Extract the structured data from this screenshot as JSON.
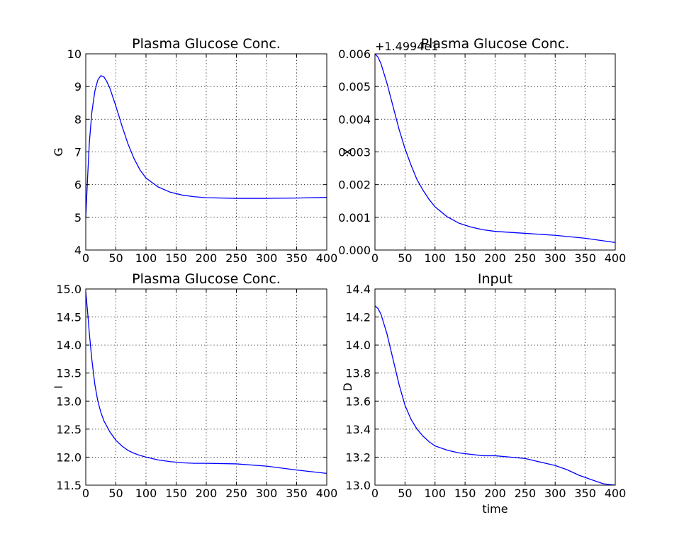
{
  "chart_data": [
    {
      "type": "line",
      "title": "Plasma Glucose Conc.",
      "xlabel": "",
      "ylabel": "G",
      "xlim": [
        0,
        400
      ],
      "ylim": [
        4,
        10
      ],
      "xticks": [
        0,
        50,
        100,
        150,
        200,
        250,
        300,
        350,
        400
      ],
      "yticks": [
        4,
        5,
        6,
        7,
        8,
        9,
        10
      ],
      "ytick_labels": [
        "4",
        "5",
        "6",
        "7",
        "8",
        "9",
        "10"
      ],
      "grid": true,
      "offset_text": "",
      "series": [
        {
          "color": "#0000ff",
          "x": [
            0,
            3,
            6,
            10,
            15,
            20,
            25,
            30,
            35,
            40,
            50,
            60,
            70,
            80,
            90,
            100,
            120,
            140,
            160,
            180,
            200,
            250,
            300,
            350,
            400
          ],
          "y": [
            5.0,
            6.2,
            7.3,
            8.2,
            8.85,
            9.2,
            9.33,
            9.3,
            9.15,
            8.95,
            8.4,
            7.8,
            7.25,
            6.8,
            6.45,
            6.2,
            5.93,
            5.77,
            5.68,
            5.63,
            5.6,
            5.58,
            5.58,
            5.59,
            5.61
          ]
        }
      ]
    },
    {
      "type": "line",
      "title": "Plasma Glucose Conc.",
      "xlabel": "",
      "ylabel": "X",
      "xlim": [
        0,
        400
      ],
      "ylim": [
        0,
        0.006
      ],
      "xticks": [
        0,
        50,
        100,
        150,
        200,
        250,
        300,
        350,
        400
      ],
      "yticks": [
        0,
        0.001,
        0.002,
        0.003,
        0.004,
        0.005,
        0.006
      ],
      "ytick_labels": [
        "0.000",
        "0.001",
        "0.002",
        "0.003",
        "0.004",
        "0.005",
        "0.006"
      ],
      "grid": true,
      "offset_text": "+1.4994e1",
      "series": [
        {
          "color": "#0000ff",
          "x": [
            0,
            5,
            10,
            20,
            30,
            40,
            50,
            60,
            70,
            80,
            90,
            100,
            120,
            140,
            160,
            180,
            200,
            250,
            300,
            350,
            400
          ],
          "y": [
            0.006,
            0.0059,
            0.0057,
            0.0051,
            0.0044,
            0.0037,
            0.0031,
            0.0026,
            0.00215,
            0.00183,
            0.00155,
            0.00132,
            0.00102,
            0.00082,
            0.0007,
            0.00062,
            0.00057,
            0.00051,
            0.00045,
            0.00036,
            0.00023
          ]
        }
      ]
    },
    {
      "type": "line",
      "title": "Plasma Glucose Conc.",
      "xlabel": "",
      "ylabel": "I",
      "xlim": [
        0,
        400
      ],
      "ylim": [
        11.5,
        15.0
      ],
      "xticks": [
        0,
        50,
        100,
        150,
        200,
        250,
        300,
        350,
        400
      ],
      "yticks": [
        11.5,
        12.0,
        12.5,
        13.0,
        13.5,
        14.0,
        14.5,
        15.0
      ],
      "ytick_labels": [
        "11.5",
        "12.0",
        "12.5",
        "13.0",
        "13.5",
        "14.0",
        "14.5",
        "15.0"
      ],
      "grid": true,
      "offset_text": "",
      "series": [
        {
          "color": "#0000ff",
          "x": [
            0,
            3,
            6,
            10,
            15,
            20,
            25,
            30,
            40,
            50,
            60,
            70,
            80,
            90,
            100,
            120,
            140,
            160,
            180,
            200,
            250,
            300,
            350,
            400
          ],
          "y": [
            14.95,
            14.6,
            14.2,
            13.75,
            13.3,
            13.0,
            12.8,
            12.65,
            12.45,
            12.3,
            12.2,
            12.12,
            12.07,
            12.03,
            12.0,
            11.95,
            11.92,
            11.9,
            11.89,
            11.89,
            11.88,
            11.84,
            11.77,
            11.71
          ]
        }
      ]
    },
    {
      "type": "line",
      "title": "Input",
      "xlabel": "time",
      "ylabel": "D",
      "xlim": [
        0,
        400
      ],
      "ylim": [
        13.0,
        14.4
      ],
      "xticks": [
        0,
        50,
        100,
        150,
        200,
        250,
        300,
        350,
        400
      ],
      "yticks": [
        13.0,
        13.2,
        13.4,
        13.6,
        13.8,
        14.0,
        14.2,
        14.4
      ],
      "ytick_labels": [
        "13.0",
        "13.2",
        "13.4",
        "13.6",
        "13.8",
        "14.0",
        "14.2",
        "14.4"
      ],
      "grid": true,
      "offset_text": "",
      "series": [
        {
          "color": "#0000ff",
          "x": [
            0,
            5,
            10,
            20,
            30,
            40,
            50,
            60,
            70,
            80,
            90,
            100,
            120,
            140,
            160,
            180,
            200,
            250,
            300,
            320,
            340,
            360,
            380,
            400
          ],
          "y": [
            14.28,
            14.26,
            14.22,
            14.08,
            13.9,
            13.72,
            13.57,
            13.47,
            13.4,
            13.35,
            13.31,
            13.28,
            13.25,
            13.23,
            13.22,
            13.21,
            13.21,
            13.19,
            13.14,
            13.11,
            13.07,
            13.04,
            13.01,
            13.0
          ]
        }
      ]
    }
  ]
}
